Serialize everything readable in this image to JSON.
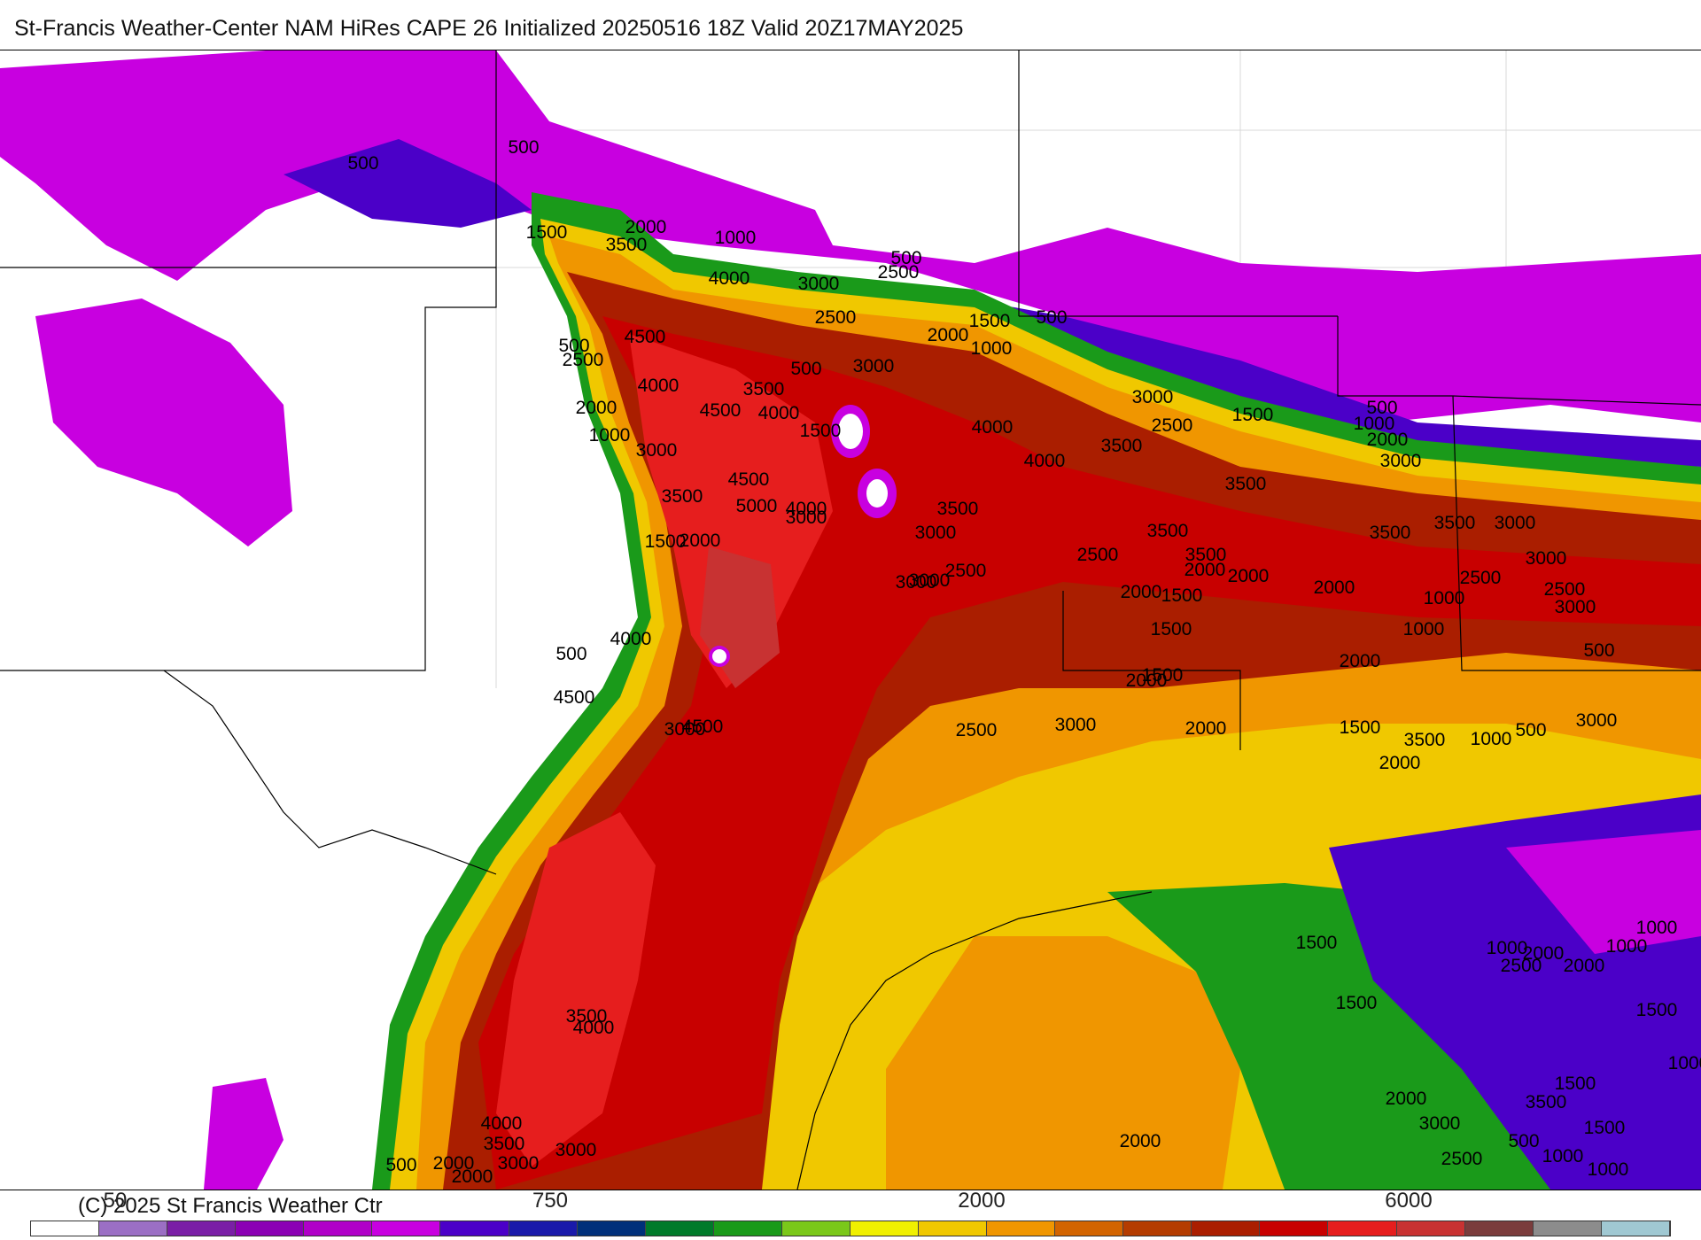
{
  "title": "St-Francis Weather-Center NAM HiRes CAPE  26 Initialized 20250516 18Z Valid 20Z17MAY2025",
  "credit": "(C) 2025 St Francis Weather Ctr",
  "colorbar": {
    "tick_labels": [
      "50",
      "750",
      "2000",
      "6000"
    ],
    "colors": [
      "#ffffff",
      "#9b6fc4",
      "#7a1fa6",
      "#8b00b4",
      "#b000c8",
      "#c800e0",
      "#4b00c8",
      "#1a1aaa",
      "#00307a",
      "#007a2a",
      "#1a9a1a",
      "#7ac81a",
      "#f0f000",
      "#f0c800",
      "#f09600",
      "#d26400",
      "#b43c00",
      "#aa1e00",
      "#c80000",
      "#e61e1e",
      "#c83232",
      "#7a3c3c",
      "#8c8c8c",
      "#a0c8d2"
    ]
  },
  "contour_labels": [
    {
      "text": "500"
    },
    {
      "text": "500"
    },
    {
      "text": "1500"
    },
    {
      "text": "2000"
    },
    {
      "text": "3500"
    },
    {
      "text": "1000"
    },
    {
      "text": "500"
    },
    {
      "text": "2500"
    },
    {
      "text": "4000"
    },
    {
      "text": "3000"
    },
    {
      "text": "2500"
    },
    {
      "text": "1500"
    },
    {
      "text": "2000"
    },
    {
      "text": "500"
    },
    {
      "text": "1000"
    },
    {
      "text": "4500"
    },
    {
      "text": "500"
    },
    {
      "text": "2500"
    },
    {
      "text": "3000"
    },
    {
      "text": "500"
    },
    {
      "text": "4000"
    },
    {
      "text": "3500"
    },
    {
      "text": "2000"
    },
    {
      "text": "4500"
    },
    {
      "text": "4000"
    },
    {
      "text": "1000"
    },
    {
      "text": "1500"
    },
    {
      "text": "3000"
    },
    {
      "text": "4000"
    },
    {
      "text": "3000"
    },
    {
      "text": "1500"
    },
    {
      "text": "500"
    },
    {
      "text": "2500"
    },
    {
      "text": "1000"
    },
    {
      "text": "3000"
    },
    {
      "text": "3500"
    },
    {
      "text": "2000"
    },
    {
      "text": "4000"
    },
    {
      "text": "3500"
    },
    {
      "text": "4500"
    },
    {
      "text": "3500"
    },
    {
      "text": "3000"
    },
    {
      "text": "3000"
    },
    {
      "text": "3500"
    },
    {
      "text": "2500"
    },
    {
      "text": "3000"
    },
    {
      "text": "5000"
    },
    {
      "text": "4000"
    },
    {
      "text": "3500"
    },
    {
      "text": "3500"
    },
    {
      "text": "3500"
    },
    {
      "text": "3000"
    },
    {
      "text": "1500"
    },
    {
      "text": "2000"
    },
    {
      "text": "3500"
    },
    {
      "text": "2500"
    },
    {
      "text": "3000"
    },
    {
      "text": "2000"
    },
    {
      "text": "2500"
    },
    {
      "text": "3000"
    },
    {
      "text": "2000"
    },
    {
      "text": "2000"
    },
    {
      "text": "1500"
    },
    {
      "text": "1500"
    },
    {
      "text": "2000"
    },
    {
      "text": "1000"
    },
    {
      "text": "2500"
    },
    {
      "text": "3000"
    },
    {
      "text": "4000"
    },
    {
      "text": "500"
    },
    {
      "text": "2000"
    },
    {
      "text": "1500"
    },
    {
      "text": "2000"
    },
    {
      "text": "1000"
    },
    {
      "text": "3500"
    },
    {
      "text": "4500"
    },
    {
      "text": "3000"
    },
    {
      "text": "3000"
    },
    {
      "text": "2000"
    },
    {
      "text": "1500"
    },
    {
      "text": "1000"
    },
    {
      "text": "4500"
    },
    {
      "text": "2500"
    },
    {
      "text": "500"
    },
    {
      "text": "3000"
    },
    {
      "text": "2000"
    },
    {
      "text": "500"
    },
    {
      "text": "2000"
    },
    {
      "text": "1000"
    },
    {
      "text": "2500"
    },
    {
      "text": "1000"
    },
    {
      "text": "2000"
    },
    {
      "text": "1500"
    },
    {
      "text": "3500"
    },
    {
      "text": "1500"
    },
    {
      "text": "4000"
    },
    {
      "text": "500"
    },
    {
      "text": "1000"
    },
    {
      "text": "1500"
    },
    {
      "text": "1000"
    },
    {
      "text": "1500"
    },
    {
      "text": "2000"
    },
    {
      "text": "4000"
    },
    {
      "text": "2000"
    },
    {
      "text": "3500"
    },
    {
      "text": "2000"
    },
    {
      "text": "3000"
    },
    {
      "text": "2000"
    },
    {
      "text": "3000"
    },
    {
      "text": "3500"
    },
    {
      "text": "1500"
    },
    {
      "text": "1000"
    },
    {
      "text": "2500"
    },
    {
      "text": "500"
    },
    {
      "text": "1000"
    },
    {
      "text": "3000"
    }
  ]
}
